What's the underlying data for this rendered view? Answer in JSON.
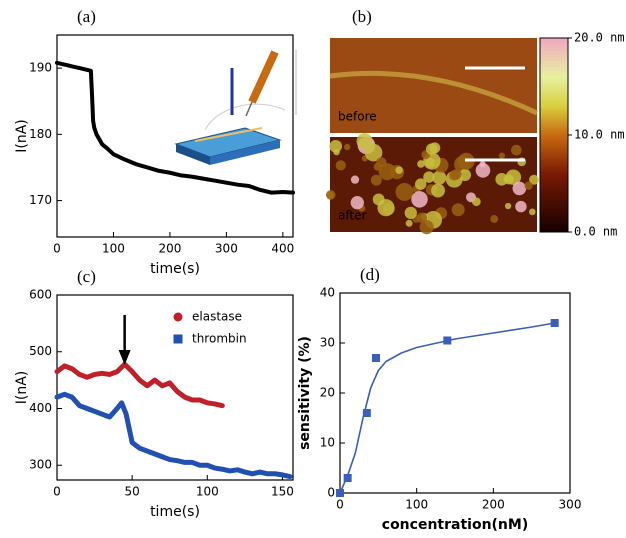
{
  "chart_data": [
    {
      "type": "line",
      "label": "(a)",
      "xlabel": "time(s)",
      "ylabel": "I(nA)",
      "xlim": [
        0,
        418
      ],
      "ylim": [
        164.5,
        195
      ],
      "xticks": [
        0,
        100,
        200,
        300,
        400
      ],
      "yticks": [
        170,
        180,
        190
      ],
      "series": [
        {
          "color": "#000000",
          "x": [
            0,
            10,
            20,
            30,
            40,
            50,
            60,
            62,
            64,
            66,
            70,
            80,
            90,
            100,
            120,
            140,
            160,
            180,
            200,
            220,
            240,
            260,
            280,
            300,
            320,
            340,
            360,
            380,
            400,
            418
          ],
          "values": [
            190.8,
            190.6,
            190.4,
            190.2,
            190,
            189.8,
            189.6,
            186,
            182,
            181,
            180,
            178.5,
            177.8,
            177,
            176.2,
            175.5,
            175,
            174.5,
            174.2,
            173.8,
            173.6,
            173.3,
            173,
            172.7,
            172.4,
            172.2,
            171.6,
            171.2,
            171.3,
            171.2
          ]
        }
      ]
    },
    {
      "type": "image",
      "label": "(b)",
      "annotations": [
        "before",
        "after"
      ],
      "clim": [
        0,
        20
      ],
      "cticks": [
        {
          "value": 20,
          "label": "20.0 nm"
        },
        {
          "value": 10,
          "label": "10.0 nm"
        },
        {
          "value": 0,
          "label": "0.0 nm"
        }
      ]
    },
    {
      "type": "line",
      "label": "(c)",
      "xlabel": "time(s)",
      "ylabel": "I(nA)",
      "xlim": [
        0,
        157
      ],
      "ylim": [
        274,
        600
      ],
      "xticks": [
        0,
        50,
        100,
        150
      ],
      "yticks": [
        300,
        400,
        500,
        600
      ],
      "legend": "upper right",
      "arrow_x": 45,
      "series": [
        {
          "name": "elastase",
          "color": "#c0202a",
          "marker": "circle",
          "x": [
            0,
            5,
            10,
            15,
            20,
            25,
            30,
            35,
            40,
            45,
            50,
            55,
            60,
            65,
            70,
            75,
            80,
            85,
            90,
            95,
            100,
            105,
            110
          ],
          "values": [
            465,
            475,
            470,
            460,
            455,
            460,
            462,
            460,
            465,
            478,
            465,
            450,
            440,
            450,
            440,
            445,
            430,
            420,
            415,
            415,
            410,
            408,
            405
          ]
        },
        {
          "name": "thrombin",
          "color": "#2050b0",
          "marker": "square",
          "x": [
            0,
            5,
            10,
            15,
            20,
            25,
            30,
            35,
            40,
            43,
            46,
            50,
            55,
            60,
            65,
            70,
            75,
            80,
            85,
            90,
            95,
            100,
            105,
            110,
            115,
            120,
            125,
            130,
            135,
            140,
            145,
            150,
            155
          ],
          "values": [
            420,
            425,
            420,
            405,
            400,
            395,
            390,
            385,
            400,
            410,
            390,
            340,
            330,
            325,
            320,
            315,
            310,
            308,
            305,
            305,
            300,
            300,
            295,
            293,
            290,
            292,
            288,
            285,
            288,
            285,
            285,
            283,
            280
          ]
        }
      ]
    },
    {
      "type": "scatter",
      "label": "(d)",
      "xlabel": "concentration(nM)",
      "ylabel": "sensitivity (%)",
      "xlim": [
        0,
        300
      ],
      "ylim": [
        0,
        40
      ],
      "xticks": [
        0,
        100,
        200,
        300
      ],
      "yticks": [
        0,
        10,
        20,
        30,
        40
      ],
      "series": [
        {
          "color": "#3a5fb8",
          "marker": "square",
          "x": [
            0,
            10,
            35,
            47,
            140,
            280
          ],
          "values": [
            0,
            3,
            16,
            27,
            30.5,
            34
          ]
        },
        {
          "color": "#3a5fb8",
          "marker": "line",
          "x": [
            0,
            10,
            20,
            30,
            40,
            50,
            60,
            80,
            100,
            150,
            200,
            250,
            280
          ],
          "values": [
            0,
            3.5,
            8,
            15,
            21,
            24.5,
            26.3,
            28,
            29.1,
            30.8,
            32,
            33.2,
            34
          ]
        }
      ]
    }
  ]
}
